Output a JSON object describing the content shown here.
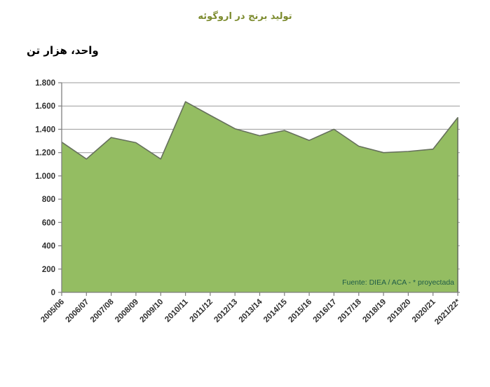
{
  "chart_data": {
    "type": "area",
    "title": "تولید برنج در اروگوئه",
    "unit_label": "واحد، هزار تن",
    "categories": [
      "2005/06",
      "2006/07",
      "2007/08",
      "2008/09",
      "2009/10",
      "2010/11",
      "2011/12",
      "2012/13",
      "2013/14",
      "2014/15",
      "2015/16",
      "2016/17",
      "2017/18",
      "2018/19",
      "2019/20",
      "2020/21",
      "2021/22*"
    ],
    "values": [
      1290,
      1145,
      1330,
      1285,
      1145,
      1637,
      1520,
      1405,
      1345,
      1390,
      1305,
      1400,
      1255,
      1200,
      1210,
      1230,
      1500
    ],
    "ylim": [
      0,
      1800
    ],
    "ytick_step": 200,
    "ytick_labels": [
      "0",
      "200",
      "400",
      "600",
      "800",
      "1.000",
      "1.200",
      "1.400",
      "1.600",
      "1.800"
    ],
    "xlabel": "",
    "ylabel": "",
    "grid": true,
    "legend": false,
    "source_note": "Fuente: DIEA / ACA - * proyectada",
    "colors": {
      "title_text": "#7c8b2e",
      "unit_text": "#000000",
      "area_fill": "#94bd62",
      "area_line": "#66705c",
      "grid": "#9b9b9b",
      "axis": "#7f7f7f",
      "tick_text": "#2e2e2e",
      "source_text": "#1e5b46"
    }
  }
}
